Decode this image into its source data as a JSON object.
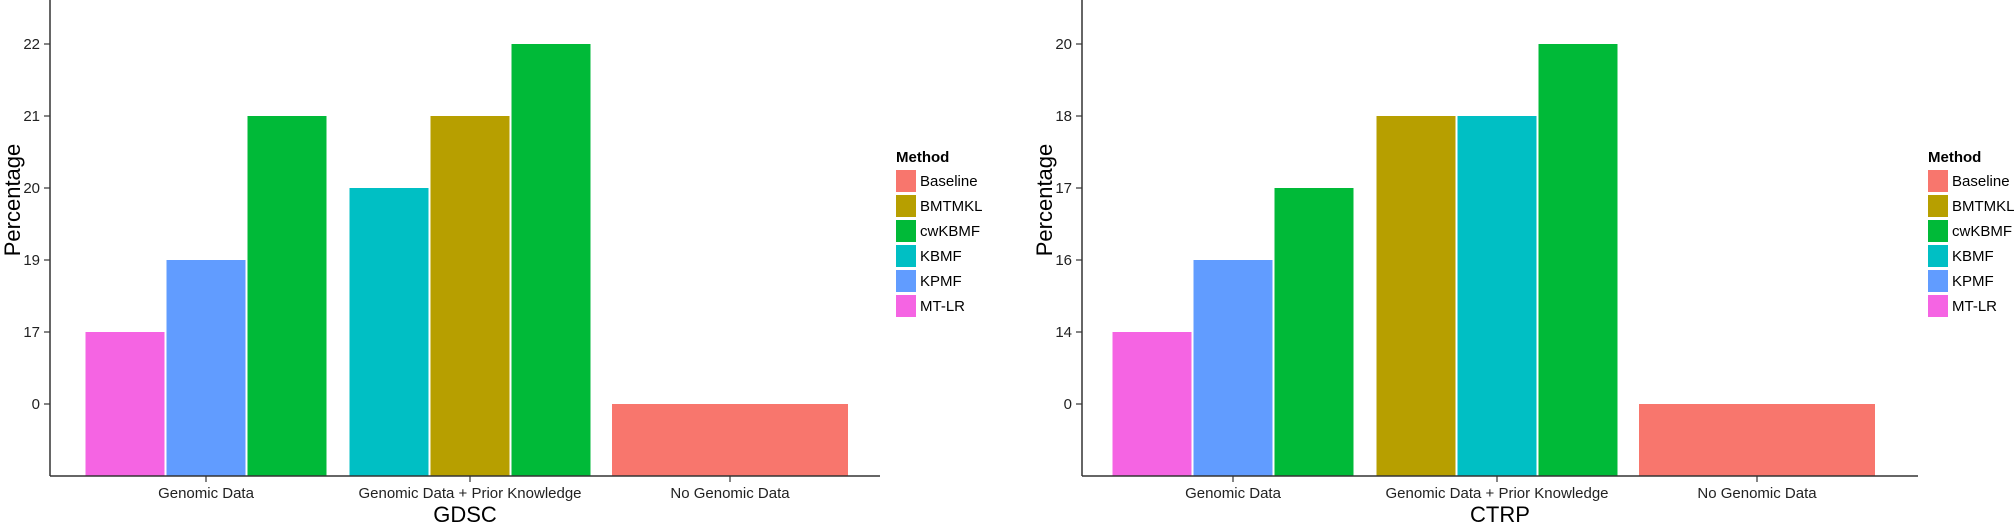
{
  "legend": {
    "title": "Method",
    "entries": [
      {
        "name": "Baseline",
        "color": "#F8766D"
      },
      {
        "name": "BMTMKL",
        "color": "#B79F00"
      },
      {
        "name": "cwKBMF",
        "color": "#00BA38"
      },
      {
        "name": "KBMF",
        "color": "#00BFC4"
      },
      {
        "name": "KPMF",
        "color": "#619CFF"
      },
      {
        "name": "MT-LR",
        "color": "#F564E3"
      }
    ]
  },
  "chart_data": [
    {
      "type": "bar",
      "xlabel": "GDSC",
      "ylabel": "Percentage",
      "y_ticks": [
        "0",
        "17",
        "19",
        "20",
        "21",
        "22"
      ],
      "grid": false,
      "legend_position": "right",
      "categories": [
        "Genomic Data",
        "Genomic Data + Prior Knowledge",
        "No Genomic Data"
      ],
      "groups": [
        {
          "category": "Genomic Data",
          "bars": [
            {
              "method": "MT-LR",
              "label": "17"
            },
            {
              "method": "KPMF",
              "label": "19"
            },
            {
              "method": "cwKBMF",
              "label": "21"
            }
          ]
        },
        {
          "category": "Genomic Data + Prior Knowledge",
          "bars": [
            {
              "method": "KBMF",
              "label": "20"
            },
            {
              "method": "BMTMKL",
              "label": "21"
            },
            {
              "method": "cwKBMF",
              "label": "22"
            }
          ]
        },
        {
          "category": "No Genomic Data",
          "bars": [
            {
              "method": "Baseline",
              "label": "0"
            }
          ]
        }
      ]
    },
    {
      "type": "bar",
      "xlabel": "CTRP",
      "ylabel": "Percentage",
      "y_ticks": [
        "0",
        "14",
        "16",
        "17",
        "18",
        "20"
      ],
      "grid": false,
      "legend_position": "right",
      "categories": [
        "Genomic Data",
        "Genomic Data + Prior Knowledge",
        "No Genomic Data"
      ],
      "groups": [
        {
          "category": "Genomic Data",
          "bars": [
            {
              "method": "MT-LR",
              "label": "14"
            },
            {
              "method": "KPMF",
              "label": "16"
            },
            {
              "method": "cwKBMF",
              "label": "17"
            }
          ]
        },
        {
          "category": "Genomic Data + Prior Knowledge",
          "bars": [
            {
              "method": "BMTMKL",
              "label": "18"
            },
            {
              "method": "KBMF",
              "label": "18"
            },
            {
              "method": "cwKBMF",
              "label": "20"
            }
          ]
        },
        {
          "category": "No Genomic Data",
          "bars": [
            {
              "method": "Baseline",
              "label": "0"
            }
          ]
        }
      ]
    }
  ]
}
